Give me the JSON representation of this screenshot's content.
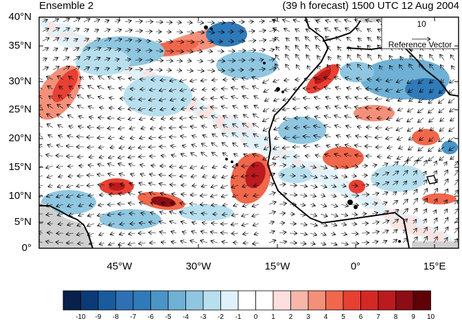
{
  "header": {
    "left_title": "Ensemble 2",
    "right_title": "(39 h forecast) 1500 UTC 12 Aug 2004"
  },
  "map": {
    "lat_labels": [
      "40°N",
      "35°N",
      "30°N",
      "25°N",
      "20°N",
      "15°N",
      "10°N",
      "5°N",
      "0°"
    ],
    "lon_labels": [
      "45°W",
      "30°W",
      "15°W",
      "0°",
      "15°E"
    ],
    "ocean_color": "#ffffff",
    "missing_color": "#d0d0d0",
    "coastline_color": "#000000"
  },
  "reference_vector": {
    "magnitude": "10",
    "label": "Reference Vector"
  },
  "colorbar": {
    "ticks": [
      "-10",
      "-9",
      "-8",
      "-7",
      "-6",
      "-5",
      "-4",
      "-3",
      "-2",
      "-1",
      "0",
      "1",
      "2",
      "3",
      "4",
      "5",
      "6",
      "7",
      "8",
      "9",
      "10"
    ],
    "colors": [
      "#08204a",
      "#0b3a78",
      "#1a5a9e",
      "#2f6fb3",
      "#2f7ab8",
      "#4a94c6",
      "#6fb0d5",
      "#8fc6e0",
      "#b8dfee",
      "#dff2fa",
      "#ffffff",
      "#ffffff",
      "#fde0dd",
      "#f8b6a8",
      "#f4907a",
      "#f0674c",
      "#e84033",
      "#d42824",
      "#bb1a1e",
      "#8c0d15",
      "#5e0208"
    ]
  }
}
